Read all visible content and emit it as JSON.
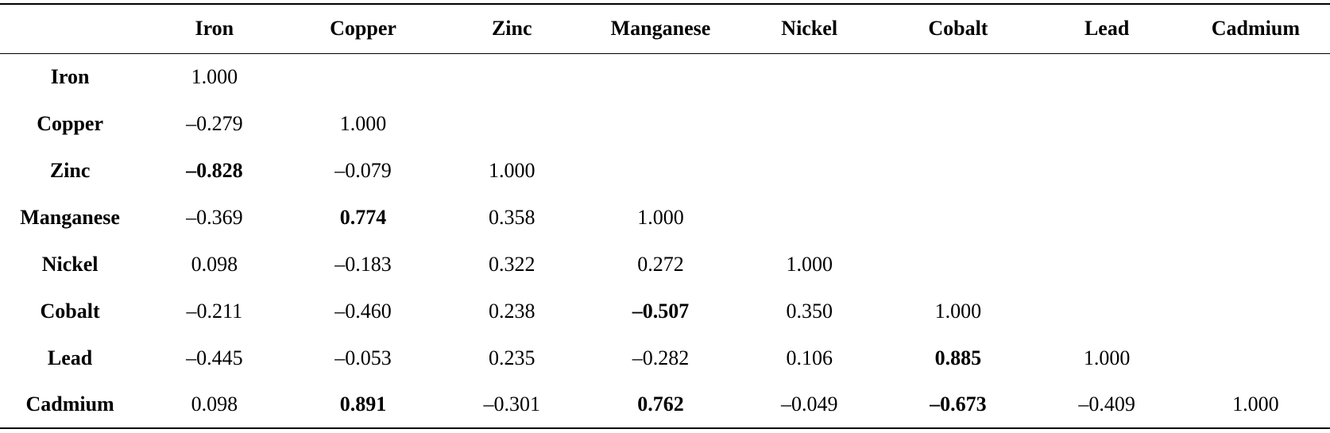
{
  "table": {
    "header": [
      "",
      "Iron",
      "Copper",
      "Zinc",
      "Manganese",
      "Nickel",
      "Cobalt",
      "Lead",
      "Cadmium"
    ],
    "rows": [
      {
        "label": "Iron",
        "cells": [
          "1.000",
          "",
          "",
          "",
          "",
          "",
          "",
          ""
        ]
      },
      {
        "label": "Copper",
        "cells": [
          "–0.279",
          "1.000",
          "",
          "",
          "",
          "",
          "",
          ""
        ]
      },
      {
        "label": "Zinc",
        "cells": [
          "–0.828",
          "–0.079",
          "1.000",
          "",
          "",
          "",
          "",
          ""
        ]
      },
      {
        "label": "Manganese",
        "cells": [
          "–0.369",
          "0.774",
          "0.358",
          "1.000",
          "",
          "",
          "",
          ""
        ]
      },
      {
        "label": "Nickel",
        "cells": [
          "0.098",
          "–0.183",
          "0.322",
          "0.272",
          "1.000",
          "",
          "",
          ""
        ]
      },
      {
        "label": "Cobalt",
        "cells": [
          "–0.211",
          "–0.460",
          "0.238",
          "–0.507",
          "0.350",
          "1.000",
          "",
          ""
        ]
      },
      {
        "label": "Lead",
        "cells": [
          "–0.445",
          "–0.053",
          "0.235",
          "–0.282",
          "0.106",
          "0.885",
          "1.000",
          ""
        ]
      },
      {
        "label": "Cadmium",
        "cells": [
          "0.098",
          "0.891",
          "–0.301",
          "0.762",
          "–0.049",
          "–0.673",
          "–0.409",
          "1.000"
        ]
      }
    ]
  }
}
